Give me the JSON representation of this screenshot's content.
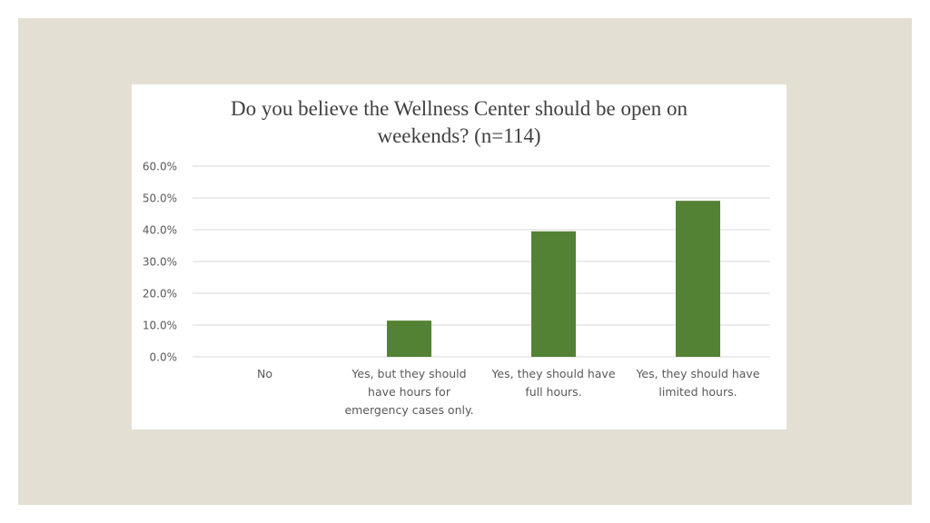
{
  "chart_data": {
    "type": "bar",
    "title": "Do you believe  the Wellness Center should be open on weekends? (n=114)",
    "title_lines": [
      "Do you believe  the Wellness Center should be open on",
      "weekends? (n=114)"
    ],
    "categories": [
      "No",
      "Yes, but they should have hours for emergency cases only.",
      "Yes, they should have full hours.",
      "Yes, they should have limited hours."
    ],
    "category_lines": [
      [
        "No"
      ],
      [
        "Yes, but they should",
        "have hours for",
        "emergency cases only."
      ],
      [
        "Yes, they should have",
        "full hours."
      ],
      [
        "Yes, they should have",
        "limited hours."
      ]
    ],
    "values": [
      0.0,
      11.4,
      39.5,
      49.1
    ],
    "y_ticks": [
      "0.0%",
      "10.0%",
      "20.0%",
      "30.0%",
      "40.0%",
      "50.0%",
      "60.0%"
    ],
    "ylim": [
      0,
      60
    ],
    "grid": true,
    "legend": "none",
    "xlabel": "",
    "ylabel": ""
  },
  "colors": {
    "background": "#e3dfd3",
    "bar": "#548235",
    "grid": "#d9d9d9",
    "text": "#595959"
  }
}
